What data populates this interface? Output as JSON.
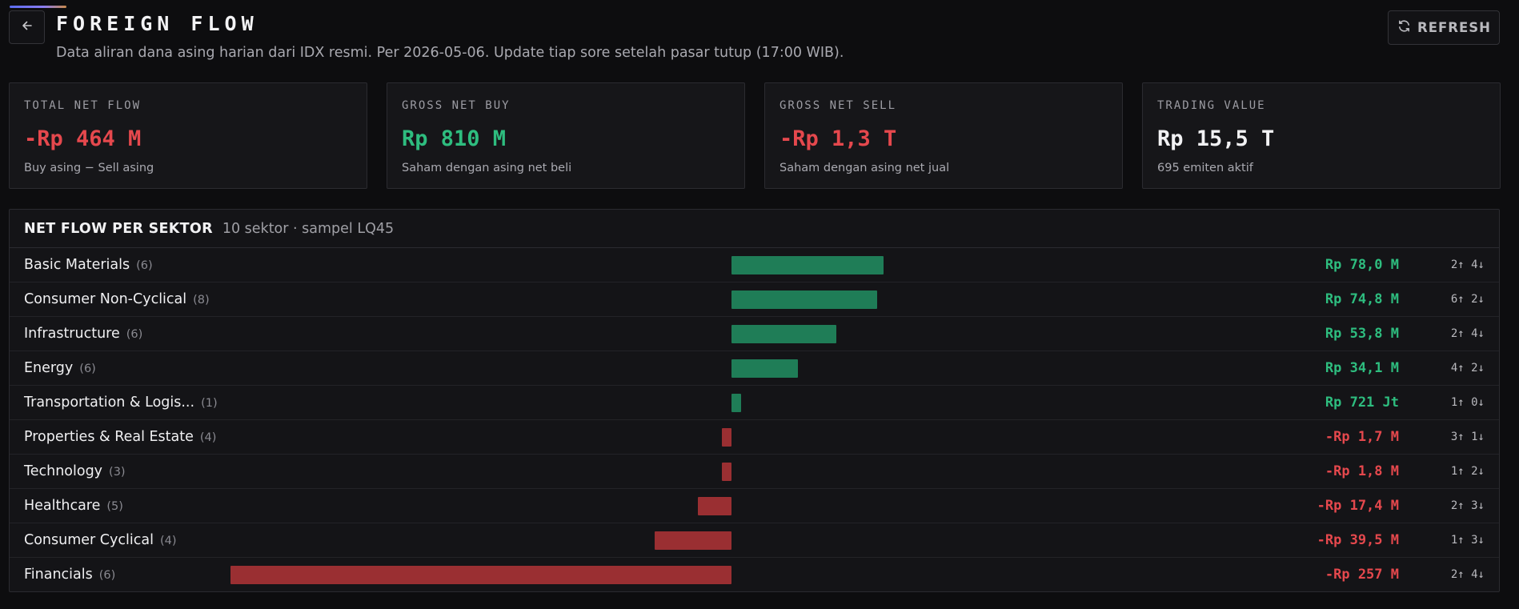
{
  "header": {
    "back_icon": "arrow-left-icon",
    "title": "FOREIGN FLOW",
    "subtitle": "Data aliran dana asing harian dari IDX resmi. Per 2026-05-06. Update tiap sore setelah pasar tutup (17:00 WIB).",
    "refresh_icon": "refresh-icon",
    "refresh_label": "REFRESH"
  },
  "colors": {
    "positive": "#2ebd7f",
    "negative": "#e5484d",
    "neutral": "#f2f2f4",
    "bar_positive": "#1f7d57",
    "bar_negative": "#9a2f32"
  },
  "cards": [
    {
      "label": "TOTAL NET FLOW",
      "value": "-Rp 464 M",
      "sub": "Buy asing − Sell asing",
      "tone": "negative"
    },
    {
      "label": "GROSS NET BUY",
      "value": "Rp 810 M",
      "sub": "Saham dengan asing net beli",
      "tone": "positive"
    },
    {
      "label": "GROSS NET SELL",
      "value": "-Rp 1,3 T",
      "sub": "Saham dengan asing net jual",
      "tone": "negative"
    },
    {
      "label": "TRADING VALUE",
      "value": "Rp 15,5 T",
      "sub": "695 emiten aktif",
      "tone": "neutral"
    }
  ],
  "sectors": {
    "title": "NET FLOW PER SEKTOR",
    "meta": "10 sektor · sampel LQ45",
    "rows": [
      {
        "name": "Basic Materials",
        "count": "(6)",
        "net_m": 78.0,
        "value": "Rp 78,0 M",
        "ratio": "2↑ 4↓"
      },
      {
        "name": "Consumer Non-Cyclical",
        "count": "(8)",
        "net_m": 74.8,
        "value": "Rp 74,8 M",
        "ratio": "6↑ 2↓"
      },
      {
        "name": "Infrastructure",
        "count": "(6)",
        "net_m": 53.8,
        "value": "Rp 53,8 M",
        "ratio": "2↑ 4↓"
      },
      {
        "name": "Energy",
        "count": "(6)",
        "net_m": 34.1,
        "value": "Rp 34,1 M",
        "ratio": "4↑ 2↓"
      },
      {
        "name": "Transportation & Logis...",
        "count": "(1)",
        "net_m": 0.721,
        "value": "Rp 721 Jt",
        "ratio": "1↑ 0↓"
      },
      {
        "name": "Properties & Real Estate",
        "count": "(4)",
        "net_m": -1.7,
        "value": "-Rp 1,7 M",
        "ratio": "3↑ 1↓"
      },
      {
        "name": "Technology",
        "count": "(3)",
        "net_m": -1.8,
        "value": "-Rp 1,8 M",
        "ratio": "1↑ 2↓"
      },
      {
        "name": "Healthcare",
        "count": "(5)",
        "net_m": -17.4,
        "value": "-Rp 17,4 M",
        "ratio": "2↑ 3↓"
      },
      {
        "name": "Consumer Cyclical",
        "count": "(4)",
        "net_m": -39.5,
        "value": "-Rp 39,5 M",
        "ratio": "1↑ 3↓"
      },
      {
        "name": "Financials",
        "count": "(6)",
        "net_m": -257,
        "value": "-Rp 257 M",
        "ratio": "2↑ 4↓"
      }
    ]
  }
}
